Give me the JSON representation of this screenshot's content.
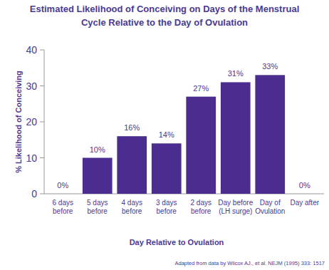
{
  "chart_data": {
    "type": "bar",
    "title": "Estimated Likelihood of Conceiving on Days of the Menstrual Cycle Relative to the Day of Ovulation",
    "x_label": "Day Relative to Ovulation",
    "y_label": "% Likelihood of Conceiving",
    "annotations": [
      "Adapted from data by Wilcox AJ., et al. NEJM (1995) 333: 1517"
    ],
    "categories": [
      "6 days before",
      "5 days before",
      "4 days before",
      "3 days before",
      "2 days before",
      "Day before (LH surge)",
      "Day of Ovulation",
      "Day after"
    ],
    "values": [
      0,
      10,
      16,
      14,
      27,
      31,
      33,
      0
    ],
    "value_labels": [
      "0%",
      "10%",
      "16%",
      "14%",
      "27%",
      "31%",
      "33%",
      "0%"
    ],
    "color": "#4a2d8f",
    "data_labels": true,
    "ylim": [
      0,
      40
    ],
    "yticks": [
      0,
      10,
      20,
      30,
      40
    ],
    "grid": false
  }
}
